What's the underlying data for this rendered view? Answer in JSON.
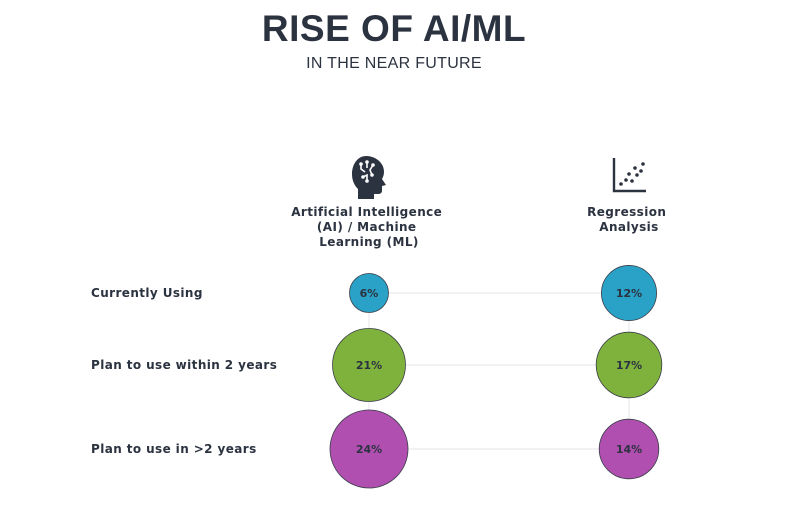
{
  "header": {
    "title": "RISE OF AI/ML",
    "subtitle": "IN THE NEAR FUTURE"
  },
  "icons": {
    "column_1": "ai-head-icon",
    "column_2": "scatter-plot-icon"
  },
  "colors": {
    "text": "#2c3340",
    "grid": "#e4e6ea",
    "Currently Using": "#2aa1c6",
    "Plan to use within 2 years": "#7fb13d",
    "Plan to use in >2 years": "#b04fb0"
  },
  "chart_data": {
    "type": "bubble-matrix",
    "title": "RISE OF AI/ML",
    "subtitle": "IN THE NEAR FUTURE",
    "columns": [
      "Artificial Intelligence (AI) / Machine Learning (ML)",
      "Regression Analysis"
    ],
    "rows": [
      "Currently Using",
      "Plan to use within 2 years",
      "Plan to use in >2 years"
    ],
    "values": [
      [
        6,
        12
      ],
      [
        21,
        17
      ],
      [
        24,
        14
      ]
    ],
    "labels": [
      [
        "6%",
        "12%"
      ],
      [
        "21%",
        "17%"
      ],
      [
        "24%",
        "14%"
      ]
    ],
    "unit": "%"
  }
}
